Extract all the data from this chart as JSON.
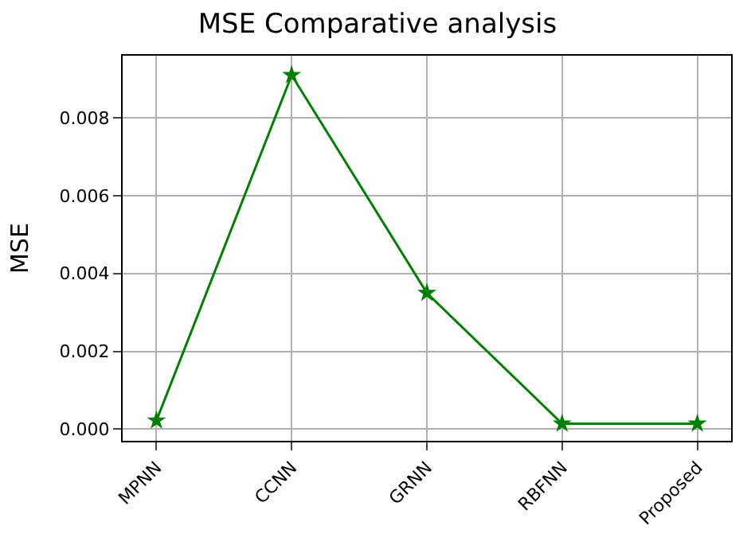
{
  "chart_data": {
    "type": "line",
    "title": "MSE Comparative analysis",
    "ylabel": "MSE",
    "categories": [
      "MPNN",
      "CCNN",
      "GRNN",
      "RBFNN",
      "Proposed"
    ],
    "series": [
      {
        "color": "#008000",
        "values": [
          0.00022,
          0.0091,
          0.0035,
          0.00014,
          0.00014
        ]
      }
    ],
    "ylim": [
      -0.0003,
      0.0096
    ],
    "yticks": [
      {
        "value": 0,
        "label": "0.000"
      },
      {
        "value": 0.002,
        "label": "0.002"
      },
      {
        "value": 0.004,
        "label": "0.004"
      },
      {
        "value": 0.006,
        "label": "0.006"
      },
      {
        "value": 0.008,
        "label": "0.008"
      }
    ],
    "grid": true,
    "marker": "star",
    "line_style": "solid",
    "legend": false
  }
}
